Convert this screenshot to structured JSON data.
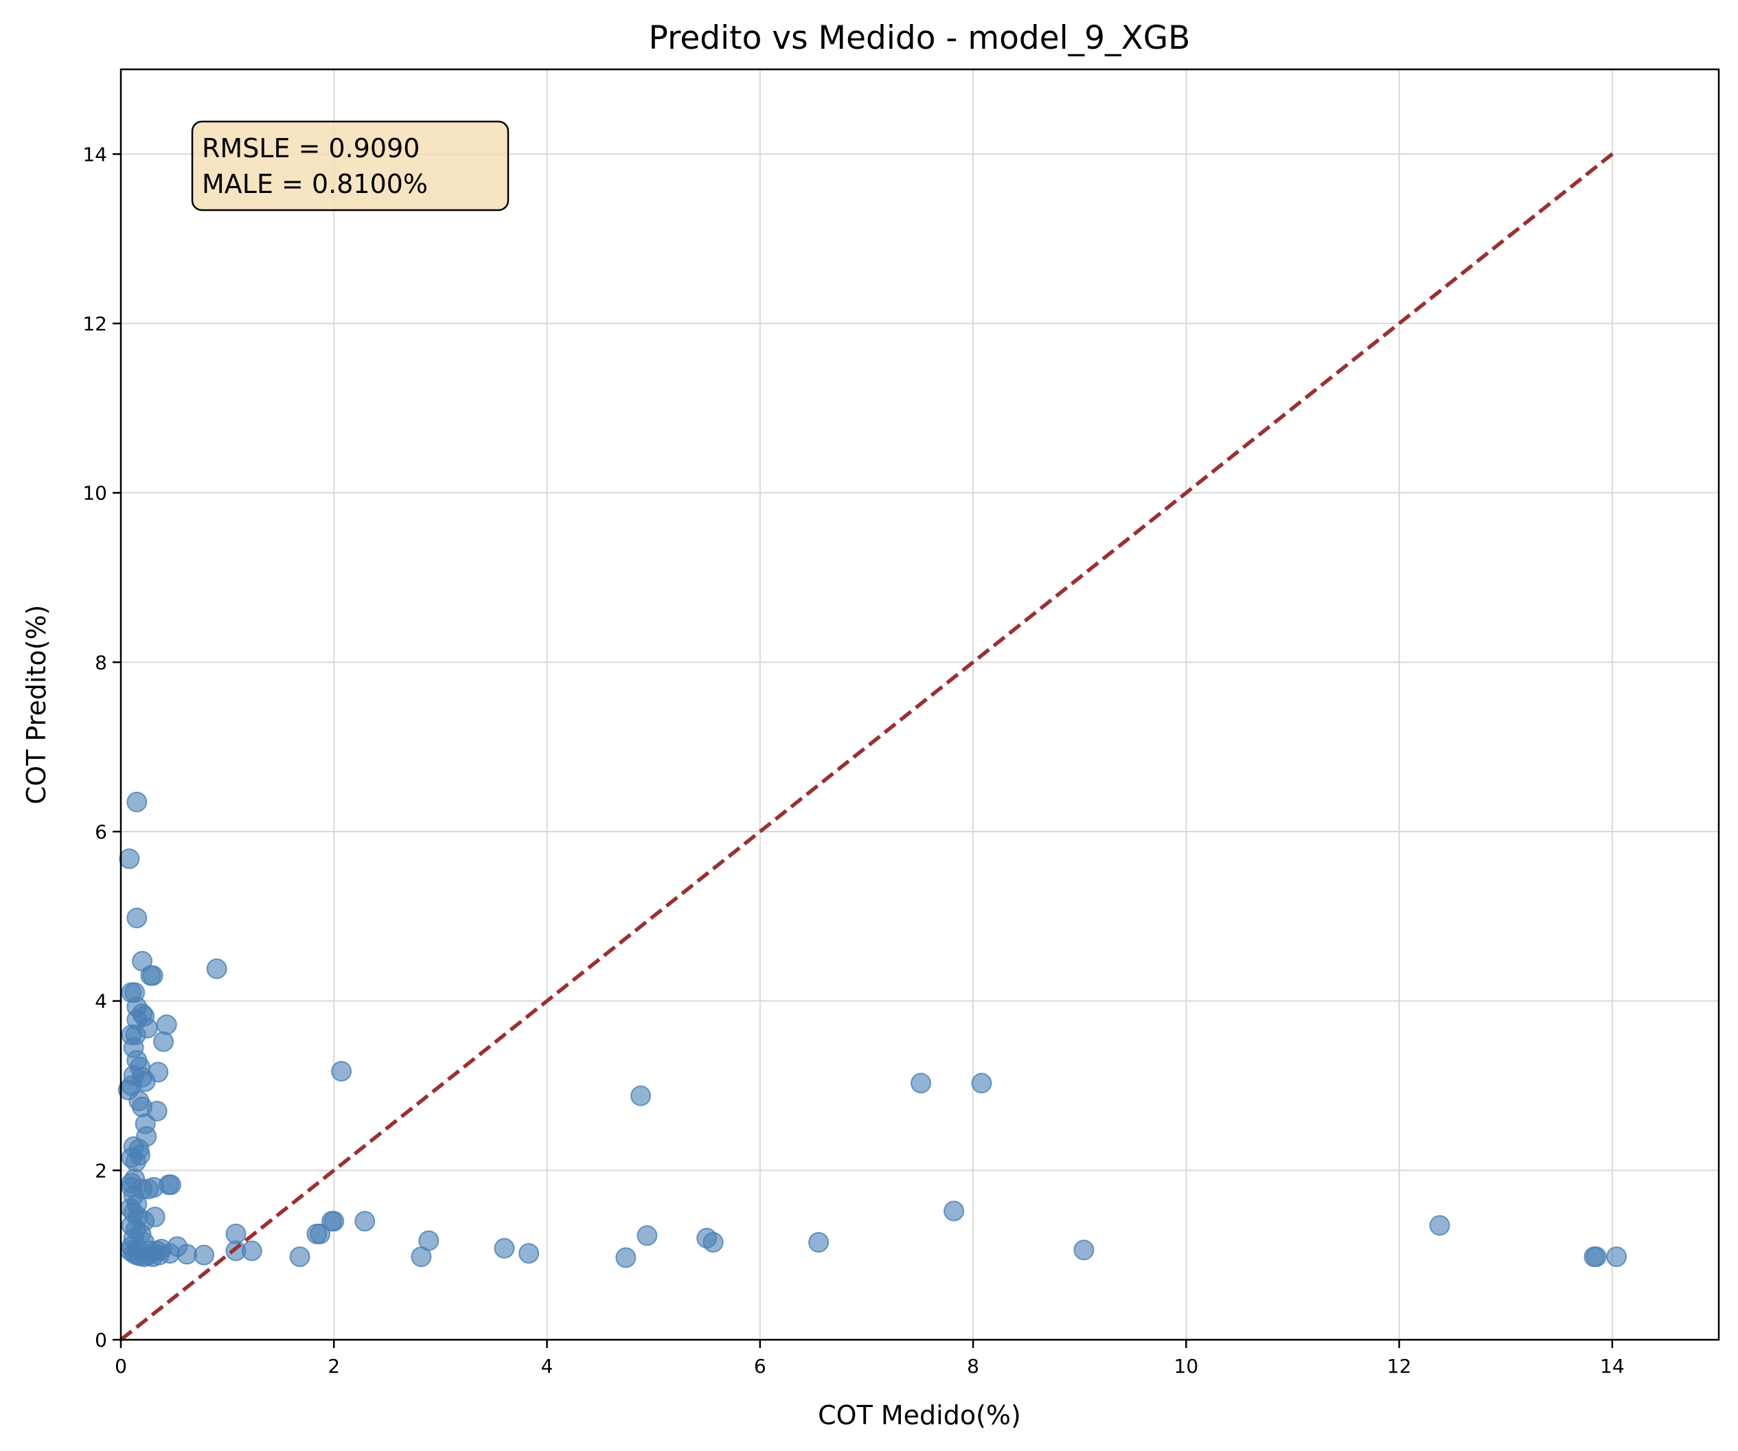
{
  "chart_data": {
    "type": "scatter",
    "title": "Predito vs Medido - model_9_XGB",
    "xlabel": "COT Medido(%)",
    "ylabel": "COT Predito(%)",
    "xlim": [
      0,
      15
    ],
    "ylim": [
      0,
      15
    ],
    "xticks": [
      "0",
      "2",
      "4",
      "6",
      "8",
      "10",
      "12",
      "14"
    ],
    "yticks": [
      "0",
      "2",
      "4",
      "6",
      "8",
      "10",
      "12",
      "14"
    ],
    "grid": true,
    "annotation": {
      "line1": "RMSLE = 0.9090",
      "line2": "MALE = 0.8100%",
      "position": "top-left"
    },
    "reference_line": {
      "from": [
        0,
        0
      ],
      "to": [
        14.03,
        14.03
      ],
      "style": "dashed",
      "color": "#9b3033"
    },
    "marker_color": "#4a80b5",
    "points": [
      [
        0.15,
        6.35
      ],
      [
        0.08,
        5.68
      ],
      [
        0.15,
        4.98
      ],
      [
        0.2,
        4.47
      ],
      [
        0.9,
        4.38
      ],
      [
        0.28,
        4.3
      ],
      [
        0.3,
        4.3
      ],
      [
        0.1,
        4.1
      ],
      [
        0.13,
        4.1
      ],
      [
        0.15,
        3.93
      ],
      [
        0.15,
        3.78
      ],
      [
        0.2,
        3.85
      ],
      [
        0.22,
        3.82
      ],
      [
        0.43,
        3.72
      ],
      [
        0.25,
        3.68
      ],
      [
        0.1,
        3.6
      ],
      [
        0.14,
        3.6
      ],
      [
        0.4,
        3.52
      ],
      [
        0.12,
        3.45
      ],
      [
        0.15,
        3.3
      ],
      [
        0.18,
        3.22
      ],
      [
        0.12,
        3.12
      ],
      [
        0.35,
        3.16
      ],
      [
        0.2,
        3.1
      ],
      [
        0.23,
        3.05
      ],
      [
        0.1,
        3.0
      ],
      [
        0.07,
        2.95
      ],
      [
        0.17,
        2.82
      ],
      [
        0.2,
        2.75
      ],
      [
        0.34,
        2.7
      ],
      [
        0.23,
        2.55
      ],
      [
        0.24,
        2.4
      ],
      [
        0.12,
        2.28
      ],
      [
        0.17,
        2.25
      ],
      [
        0.18,
        2.18
      ],
      [
        0.1,
        2.15
      ],
      [
        0.14,
        2.1
      ],
      [
        0.13,
        1.9
      ],
      [
        0.1,
        1.85
      ],
      [
        0.45,
        1.83
      ],
      [
        0.47,
        1.83
      ],
      [
        0.1,
        1.8
      ],
      [
        0.2,
        1.78
      ],
      [
        0.26,
        1.78
      ],
      [
        0.31,
        1.8
      ],
      [
        0.12,
        1.7
      ],
      [
        0.15,
        1.6
      ],
      [
        0.09,
        1.55
      ],
      [
        0.12,
        1.5
      ],
      [
        0.16,
        1.45
      ],
      [
        0.32,
        1.45
      ],
      [
        0.22,
        1.4
      ],
      [
        0.1,
        1.35
      ],
      [
        0.14,
        1.3
      ],
      [
        0.19,
        1.25
      ],
      [
        0.12,
        1.2
      ],
      [
        0.22,
        1.15
      ],
      [
        0.1,
        1.1
      ],
      [
        0.16,
        1.08
      ],
      [
        0.28,
        1.05
      ],
      [
        0.09,
        1.05
      ],
      [
        0.12,
        1.02
      ],
      [
        0.15,
        1.0
      ],
      [
        0.18,
        0.99
      ],
      [
        0.22,
        0.98
      ],
      [
        0.26,
        1.0
      ],
      [
        0.3,
        0.98
      ],
      [
        0.34,
        1.05
      ],
      [
        0.36,
        1.0
      ],
      [
        0.38,
        1.07
      ],
      [
        0.46,
        1.02
      ],
      [
        0.53,
        1.1
      ],
      [
        0.62,
        1.01
      ],
      [
        0.78,
        1.0
      ],
      [
        1.08,
        1.25
      ],
      [
        1.08,
        1.05
      ],
      [
        1.23,
        1.05
      ],
      [
        1.68,
        0.98
      ],
      [
        1.84,
        1.25
      ],
      [
        1.87,
        1.25
      ],
      [
        1.98,
        1.4
      ],
      [
        2.0,
        1.4
      ],
      [
        2.07,
        3.17
      ],
      [
        2.29,
        1.4
      ],
      [
        2.82,
        0.98
      ],
      [
        2.89,
        1.17
      ],
      [
        3.6,
        1.08
      ],
      [
        3.83,
        1.02
      ],
      [
        4.74,
        0.97
      ],
      [
        4.88,
        2.88
      ],
      [
        4.94,
        1.23
      ],
      [
        5.5,
        1.2
      ],
      [
        5.56,
        1.15
      ],
      [
        6.55,
        1.15
      ],
      [
        7.51,
        3.03
      ],
      [
        7.82,
        1.52
      ],
      [
        8.08,
        3.03
      ],
      [
        9.04,
        1.06
      ],
      [
        12.38,
        1.35
      ],
      [
        13.83,
        0.98
      ],
      [
        13.85,
        0.98
      ],
      [
        14.04,
        0.98
      ]
    ]
  }
}
